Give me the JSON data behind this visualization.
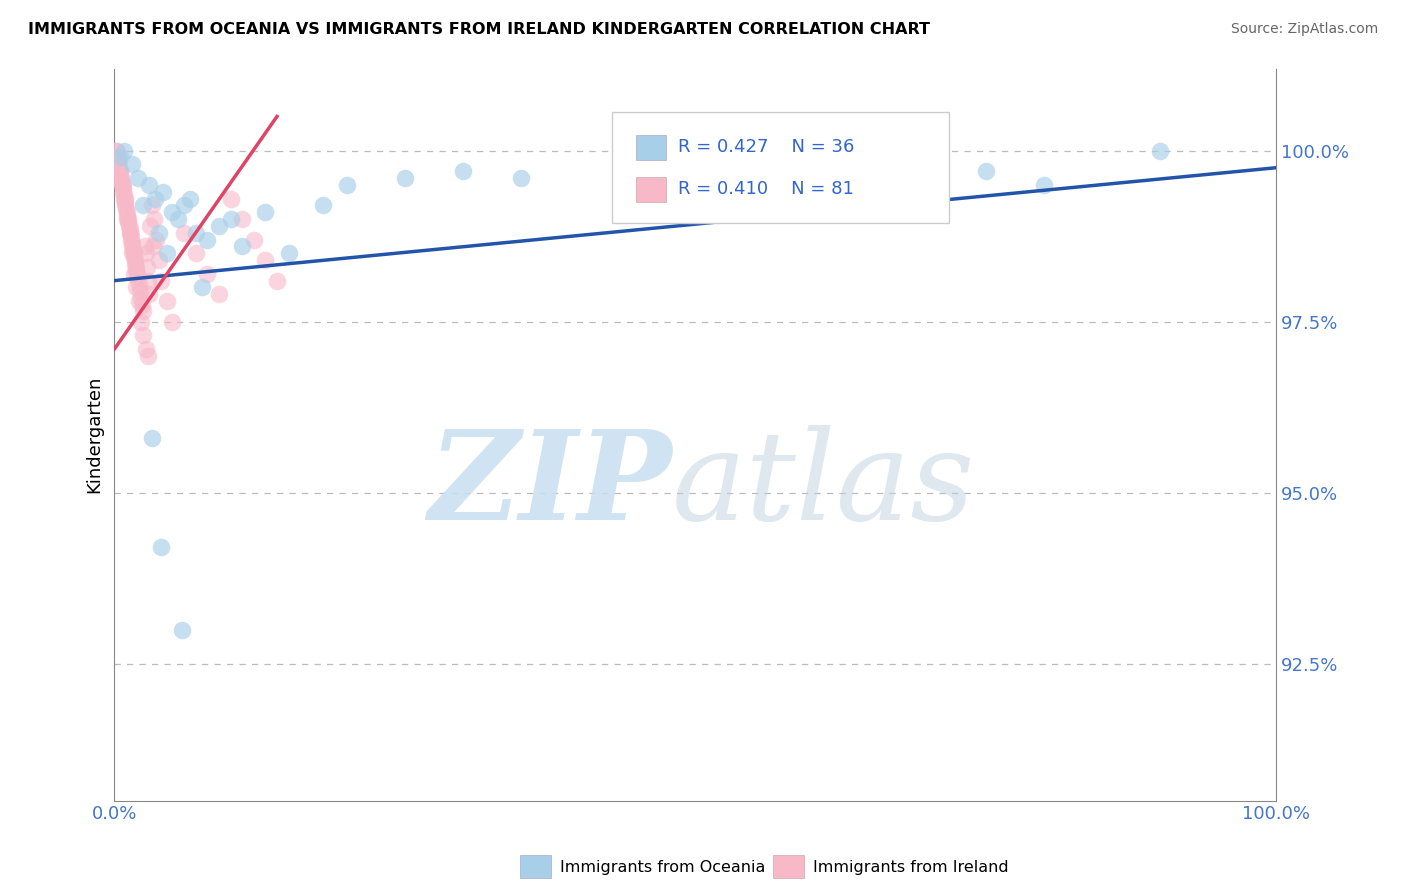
{
  "title": "IMMIGRANTS FROM OCEANIA VS IMMIGRANTS FROM IRELAND KINDERGARTEN CORRELATION CHART",
  "source": "Source: ZipAtlas.com",
  "ylabel": "Kindergarten",
  "x_min": 0.0,
  "x_max": 100.0,
  "y_min": 90.5,
  "y_max": 101.2,
  "y_ticks": [
    92.5,
    95.0,
    97.5,
    100.0
  ],
  "y_tick_labels": [
    "92.5%",
    "95.0%",
    "97.5%",
    "100.0%"
  ],
  "legend_r_oceania": "R = 0.427",
  "legend_n_oceania": "N = 36",
  "legend_r_ireland": "R = 0.410",
  "legend_n_ireland": "N = 81",
  "legend_label_oceania": "Immigrants from Oceania",
  "legend_label_ireland": "Immigrants from Ireland",
  "blue_color": "#a8cfe8",
  "pink_color": "#f7b8c8",
  "line_blue_color": "#2255aa",
  "line_pink_color": "#dd4466",
  "blue_line_x0": 0.0,
  "blue_line_y0": 98.1,
  "blue_line_x1": 100.0,
  "blue_line_y1": 99.75,
  "pink_line_x0": 0.0,
  "pink_line_y0": 97.1,
  "pink_line_x1": 14.0,
  "pink_line_y1": 100.5,
  "blue_x": [
    0.5,
    0.8,
    1.5,
    2.0,
    3.0,
    3.5,
    4.2,
    5.0,
    5.5,
    6.0,
    7.0,
    8.0,
    9.0,
    10.0,
    11.0,
    13.0,
    15.0,
    18.0,
    20.0,
    25.0,
    30.0,
    35.0,
    45.0,
    55.0,
    65.0,
    75.0,
    80.0,
    90.0,
    3.2,
    4.0,
    5.8,
    7.5,
    2.5,
    4.5,
    3.8,
    6.5
  ],
  "blue_y": [
    99.9,
    100.0,
    99.8,
    99.6,
    99.5,
    99.3,
    99.4,
    99.1,
    99.0,
    99.2,
    98.8,
    98.7,
    98.9,
    99.0,
    98.6,
    99.1,
    98.5,
    99.2,
    99.5,
    99.6,
    99.7,
    99.6,
    99.4,
    99.1,
    99.3,
    99.7,
    99.5,
    100.0,
    95.8,
    94.2,
    93.0,
    98.0,
    99.2,
    98.5,
    98.8,
    99.3
  ],
  "pink_x": [
    0.1,
    0.15,
    0.2,
    0.25,
    0.3,
    0.35,
    0.4,
    0.45,
    0.5,
    0.55,
    0.6,
    0.65,
    0.7,
    0.75,
    0.8,
    0.85,
    0.9,
    0.95,
    1.0,
    1.05,
    1.1,
    1.15,
    1.2,
    1.25,
    1.3,
    1.35,
    1.4,
    1.45,
    1.5,
    1.55,
    1.6,
    1.65,
    1.7,
    1.75,
    1.8,
    1.85,
    1.9,
    1.95,
    2.0,
    2.1,
    2.2,
    2.3,
    2.4,
    2.5,
    2.6,
    2.7,
    2.8,
    2.9,
    3.0,
    3.2,
    3.4,
    3.6,
    3.8,
    4.0,
    4.5,
    5.0,
    6.0,
    7.0,
    8.0,
    9.0,
    10.0,
    11.0,
    12.0,
    13.0,
    14.0,
    0.3,
    0.5,
    0.7,
    0.9,
    1.1,
    1.3,
    1.5,
    1.7,
    1.9,
    2.1,
    2.3,
    2.5,
    2.7,
    2.9,
    3.1,
    3.3
  ],
  "pink_y": [
    100.0,
    99.9,
    100.0,
    99.85,
    99.9,
    99.8,
    99.75,
    99.7,
    99.65,
    99.6,
    99.55,
    99.5,
    99.45,
    99.4,
    99.35,
    99.3,
    99.25,
    99.2,
    99.15,
    99.1,
    99.05,
    99.0,
    98.95,
    98.9,
    98.85,
    98.8,
    98.75,
    98.7,
    98.65,
    98.6,
    98.55,
    98.5,
    98.45,
    98.4,
    98.35,
    98.3,
    98.25,
    98.2,
    98.15,
    98.05,
    97.95,
    97.85,
    97.75,
    97.65,
    98.6,
    98.5,
    98.3,
    98.1,
    97.9,
    99.2,
    99.0,
    98.7,
    98.4,
    98.1,
    97.8,
    97.5,
    98.8,
    98.5,
    98.2,
    97.9,
    99.3,
    99.0,
    98.7,
    98.4,
    98.1,
    99.8,
    99.7,
    99.5,
    99.3,
    99.0,
    98.8,
    98.5,
    98.2,
    98.0,
    97.8,
    97.5,
    97.3,
    97.1,
    97.0,
    98.9,
    98.6
  ]
}
